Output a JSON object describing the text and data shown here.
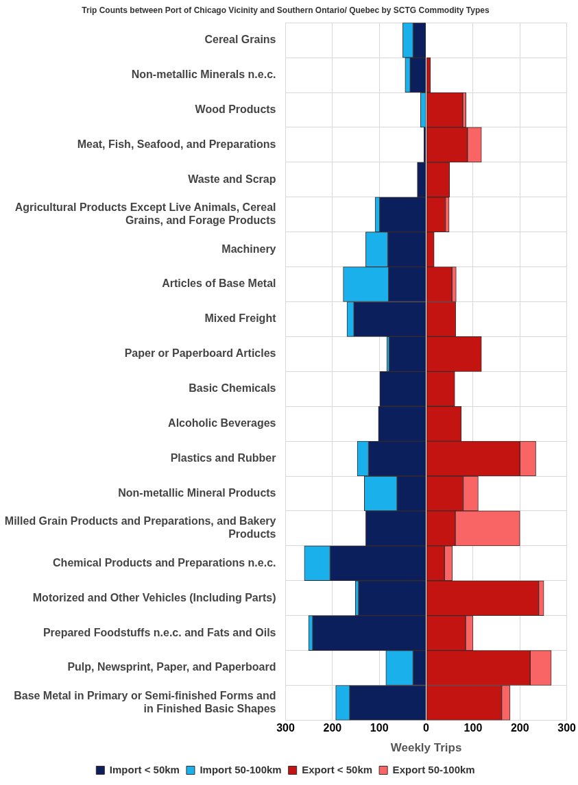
{
  "chart_data": {
    "type": "bar",
    "orientation": "horizontal",
    "stacked": true,
    "title": "Trip Counts between Port of Chicago Vicinity and Southern Ontario/ Quebec by SCTG Commodity Types",
    "xlabel": "Weekly Trips",
    "categories": [
      "Cereal Grains",
      "Non-metallic Minerals n.e.c.",
      "Wood Products",
      "Meat, Fish, Seafood, and Preparations",
      "Waste and Scrap",
      "Agricultural Products Except Live Animals, Cereal Grains, and Forage Products",
      "Machinery",
      "Articles of Base Metal",
      "Mixed Freight",
      "Paper or Paperboard Articles",
      "Basic Chemicals",
      "Alcoholic Beverages",
      "Plastics and Rubber",
      "Non-metallic Mineral Products",
      "Milled Grain Products and Preparations, and Bakery Products",
      "Chemical Products and Preparations n.e.c.",
      "Motorized and Other Vehicles (Including Parts)",
      "Prepared Foodstuffs n.e.c. and Fats and Oils",
      "Pulp, Newsprint, Paper, and Paperboard",
      "Base Metal in Primary or Semi-finished Forms and in Finished Basic Shapes"
    ],
    "series": [
      {
        "name": "Import < 50km",
        "color": "#0a1f5c",
        "values": [
          -28,
          -34,
          0,
          -5,
          -19,
          -99,
          -82,
          -80,
          -154,
          -79,
          -99,
          -102,
          -123,
          -62,
          -129,
          -205,
          -144,
          -242,
          -28,
          -163
        ]
      },
      {
        "name": "Import 50-100km",
        "color": "#1ab0ec",
        "values": [
          -22,
          -11,
          -12,
          0,
          0,
          -10,
          -47,
          -97,
          -15,
          -5,
          0,
          0,
          -24,
          -70,
          0,
          -55,
          -7,
          -9,
          -58,
          -30
        ]
      },
      {
        "name": "Export < 50km",
        "color": "#c41412",
        "values": [
          0,
          9,
          78,
          88,
          50,
          41,
          17,
          55,
          63,
          118,
          61,
          75,
          200,
          79,
          62,
          39,
          240,
          84,
          222,
          161
        ]
      },
      {
        "name": "Export 50-100km",
        "color": "#f96464",
        "values": [
          0,
          0,
          7,
          30,
          0,
          8,
          0,
          9,
          0,
          0,
          0,
          0,
          34,
          32,
          138,
          17,
          11,
          16,
          45,
          18
        ]
      }
    ],
    "xlim": [
      -300,
      300
    ],
    "xticks": [
      {
        "value": -300,
        "label": "300"
      },
      {
        "value": -200,
        "label": "200"
      },
      {
        "value": -100,
        "label": "100"
      },
      0,
      100,
      200,
      300
    ],
    "grid": true,
    "legend": "bottom"
  }
}
